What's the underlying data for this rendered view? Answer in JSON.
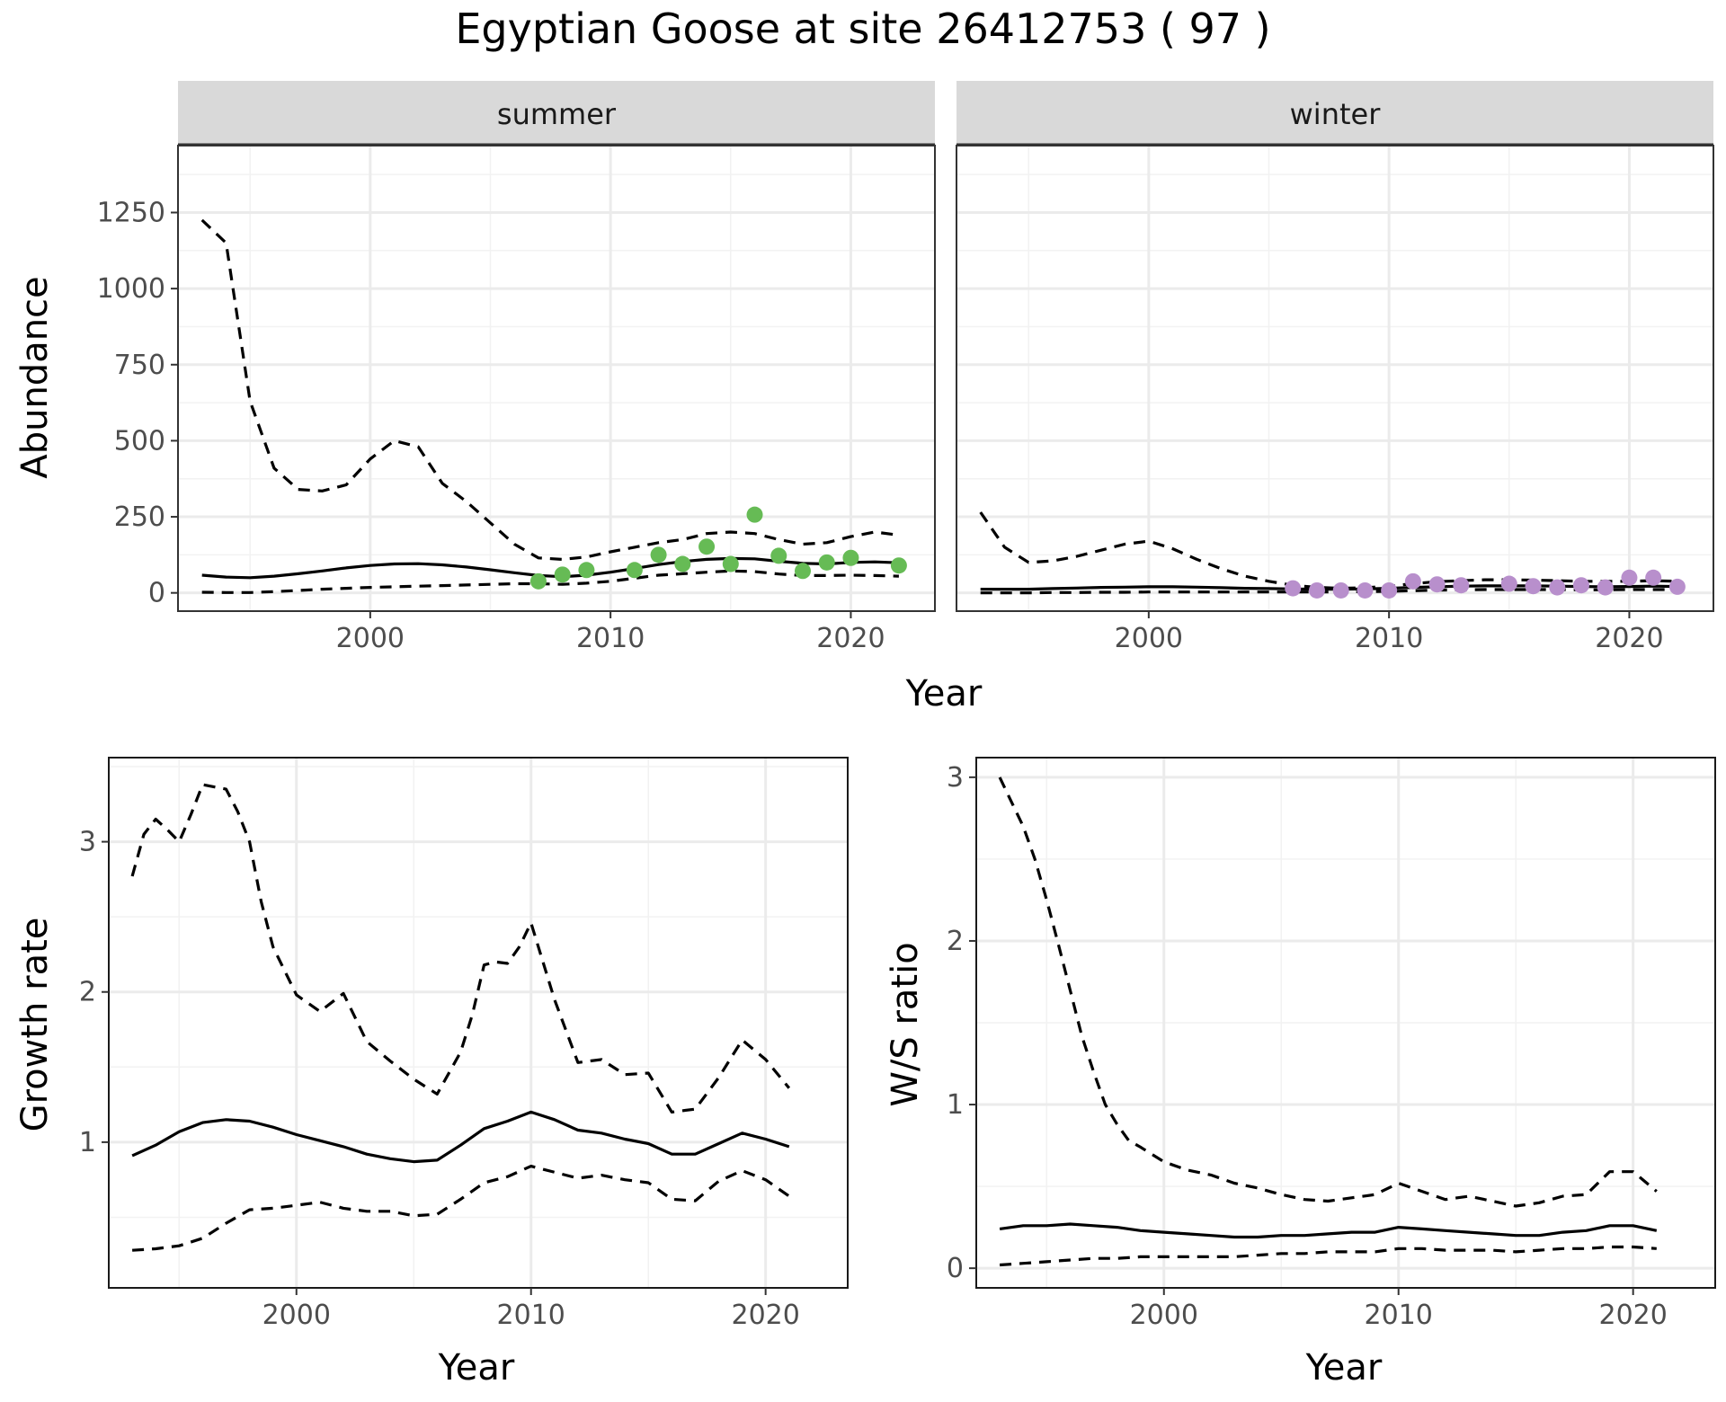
{
  "title": "Egyptian Goose at site 26412753 ( 97 )",
  "colors": {
    "summer_points": "#66bb55",
    "winter_points": "#b88fcc",
    "line": "#000000",
    "grid_major": "#ebebeb",
    "grid_minor": "#f2f2f2",
    "strip_fill": "#d9d9d9",
    "strip_border": "#333333"
  },
  "chart_data": [
    {
      "type": "line",
      "facet": "summer",
      "strip_label": "summer",
      "xlabel": "Year",
      "ylabel": "Abundance",
      "xlim": [
        1992,
        2023.5
      ],
      "ylim": [
        -60,
        1470
      ],
      "x_ticks": [
        2000,
        2010,
        2020
      ],
      "x_tick_labels": [
        "2000",
        "2010",
        "2020"
      ],
      "y_ticks": [
        0,
        250,
        500,
        750,
        1000,
        1250
      ],
      "y_tick_labels": [
        "0",
        "250",
        "500",
        "750",
        "1000",
        "1250"
      ],
      "grid": true,
      "series": [
        {
          "role": "estimate",
          "style": "solid",
          "x": [
            1993,
            1994,
            1995,
            1996,
            1997,
            1998,
            1999,
            2000,
            2001,
            2002,
            2003,
            2004,
            2005,
            2006,
            2007,
            2008,
            2009,
            2010,
            2011,
            2012,
            2013,
            2014,
            2015,
            2016,
            2017,
            2018,
            2019,
            2020,
            2021,
            2022
          ],
          "y": [
            58,
            52,
            50,
            55,
            63,
            72,
            82,
            90,
            95,
            96,
            92,
            85,
            76,
            66,
            57,
            53,
            58,
            68,
            80,
            93,
            103,
            110,
            113,
            112,
            104,
            97,
            95,
            100,
            102,
            99
          ]
        },
        {
          "role": "upper",
          "style": "dashed",
          "x": [
            1993,
            1994,
            1995,
            1996,
            1997,
            1998,
            1999,
            2000,
            2001,
            2002,
            2003,
            2004,
            2005,
            2006,
            2007,
            2008,
            2009,
            2010,
            2011,
            2012,
            2013,
            2014,
            2015,
            2016,
            2017,
            2018,
            2019,
            2020,
            2021,
            2022
          ],
          "y": [
            1225,
            1150,
            630,
            410,
            340,
            335,
            355,
            440,
            500,
            480,
            360,
            300,
            230,
            160,
            115,
            110,
            118,
            135,
            150,
            165,
            175,
            195,
            200,
            195,
            175,
            160,
            165,
            185,
            200,
            190
          ]
        },
        {
          "role": "lower",
          "style": "dashed",
          "x": [
            1993,
            1994,
            1995,
            1996,
            1997,
            1998,
            1999,
            2000,
            2001,
            2002,
            2003,
            2004,
            2005,
            2006,
            2007,
            2008,
            2009,
            2010,
            2011,
            2012,
            2013,
            2014,
            2015,
            2016,
            2017,
            2018,
            2019,
            2020,
            2021,
            2022
          ],
          "y": [
            2,
            1,
            1,
            4,
            8,
            12,
            15,
            18,
            20,
            22,
            24,
            26,
            28,
            30,
            30,
            28,
            32,
            38,
            48,
            58,
            63,
            68,
            72,
            70,
            62,
            57,
            57,
            58,
            57,
            55
          ]
        },
        {
          "role": "observed",
          "style": "points",
          "x": [
            2007,
            2008,
            2009,
            2011,
            2012,
            2013,
            2014,
            2015,
            2016,
            2017,
            2018,
            2019,
            2020,
            2022
          ],
          "y": [
            38,
            60,
            75,
            75,
            125,
            95,
            152,
            95,
            257,
            122,
            72,
            100,
            115,
            90
          ]
        }
      ]
    },
    {
      "type": "line",
      "facet": "winter",
      "strip_label": "winter",
      "xlabel": "Year",
      "ylabel": "Abundance",
      "xlim": [
        1992,
        2023.5
      ],
      "ylim": [
        -60,
        1470
      ],
      "x_ticks": [
        2000,
        2010,
        2020
      ],
      "x_tick_labels": [
        "2000",
        "2010",
        "2020"
      ],
      "grid": true,
      "series": [
        {
          "role": "estimate",
          "style": "solid",
          "x": [
            1993,
            1994,
            1995,
            1996,
            1997,
            1998,
            1999,
            2000,
            2001,
            2002,
            2003,
            2004,
            2005,
            2006,
            2007,
            2008,
            2009,
            2010,
            2011,
            2012,
            2013,
            2014,
            2015,
            2016,
            2017,
            2018,
            2019,
            2020,
            2021,
            2022
          ],
          "y": [
            12,
            12,
            12,
            14,
            16,
            18,
            19,
            20,
            20,
            19,
            17,
            15,
            14,
            13,
            12,
            12,
            13,
            15,
            18,
            20,
            22,
            23,
            23,
            23,
            22,
            21,
            20,
            21,
            22,
            21
          ]
        },
        {
          "role": "upper",
          "style": "dashed",
          "x": [
            1993,
            1994,
            1995,
            1996,
            1997,
            1998,
            1999,
            2000,
            2001,
            2002,
            2003,
            2004,
            2005,
            2006,
            2007,
            2008,
            2009,
            2010,
            2011,
            2012,
            2013,
            2014,
            2015,
            2016,
            2017,
            2018,
            2019,
            2020,
            2021,
            2022
          ],
          "y": [
            265,
            150,
            100,
            105,
            120,
            140,
            160,
            170,
            145,
            110,
            80,
            55,
            38,
            25,
            18,
            15,
            17,
            22,
            30,
            37,
            40,
            43,
            43,
            42,
            40,
            38,
            38,
            38,
            40,
            38
          ]
        },
        {
          "role": "lower",
          "style": "dashed",
          "x": [
            1993,
            1994,
            1995,
            1996,
            1997,
            1998,
            1999,
            2000,
            2001,
            2002,
            2003,
            2004,
            2005,
            2006,
            2007,
            2008,
            2009,
            2010,
            2011,
            2012,
            2013,
            2014,
            2015,
            2016,
            2017,
            2018,
            2019,
            2020,
            2021,
            2022
          ],
          "y": [
            0,
            0,
            0,
            1,
            1,
            2,
            2,
            3,
            3,
            3,
            3,
            3,
            3,
            3,
            3,
            3,
            4,
            5,
            7,
            9,
            10,
            11,
            11,
            11,
            11,
            10,
            10,
            11,
            11,
            11
          ]
        },
        {
          "role": "observed",
          "style": "points",
          "x": [
            2006,
            2007,
            2008,
            2009,
            2010,
            2011,
            2012,
            2013,
            2015,
            2016,
            2017,
            2018,
            2019,
            2020,
            2021,
            2022
          ],
          "y": [
            15,
            8,
            8,
            8,
            8,
            38,
            28,
            25,
            30,
            22,
            18,
            25,
            18,
            50,
            50,
            20
          ]
        }
      ]
    },
    {
      "type": "line",
      "facet": "growth",
      "xlabel": "Year",
      "ylabel": "Growth rate",
      "xlim": [
        1992,
        2023.5
      ],
      "ylim": [
        0.03,
        3.56
      ],
      "x_ticks": [
        2000,
        2010,
        2020
      ],
      "x_tick_labels": [
        "2000",
        "2010",
        "2020"
      ],
      "y_ticks": [
        1,
        2,
        3
      ],
      "y_tick_labels": [
        "1",
        "2",
        "3"
      ],
      "grid": true,
      "series": [
        {
          "role": "estimate",
          "style": "solid",
          "x": [
            1993,
            1994,
            1995,
            1996,
            1997,
            1998,
            1999,
            2000,
            2001,
            2002,
            2003,
            2004,
            2005,
            2006,
            2007,
            2008,
            2009,
            2010,
            2011,
            2012,
            2013,
            2014,
            2015,
            2016,
            2017,
            2018,
            2019,
            2020,
            2021
          ],
          "y": [
            0.91,
            0.98,
            1.07,
            1.13,
            1.15,
            1.14,
            1.1,
            1.05,
            1.01,
            0.97,
            0.92,
            0.89,
            0.87,
            0.88,
            0.98,
            1.09,
            1.14,
            1.2,
            1.15,
            1.08,
            1.06,
            1.02,
            0.99,
            0.92,
            0.92,
            0.99,
            1.06,
            1.02,
            0.97
          ]
        },
        {
          "role": "upper",
          "style": "dashed",
          "x": [
            1993,
            1993.5,
            1994,
            1994.5,
            1995,
            1995.5,
            1996,
            1997,
            1997.5,
            1998,
            1998.5,
            1999,
            2000,
            2001,
            2002,
            2003,
            2004,
            2005,
            2006,
            2007,
            2007.5,
            2008,
            2008.5,
            2009,
            2009.5,
            2010,
            2011,
            2012,
            2013,
            2014,
            2015,
            2016,
            2017,
            2018,
            2019,
            2020,
            2021
          ],
          "y": [
            2.77,
            3.05,
            3.15,
            3.08,
            3.0,
            3.18,
            3.38,
            3.35,
            3.2,
            3.0,
            2.6,
            2.3,
            1.98,
            1.87,
            1.99,
            1.67,
            1.54,
            1.42,
            1.32,
            1.6,
            1.85,
            2.18,
            2.2,
            2.19,
            2.3,
            2.46,
            1.95,
            1.53,
            1.55,
            1.45,
            1.46,
            1.2,
            1.22,
            1.43,
            1.68,
            1.55,
            1.36
          ]
        },
        {
          "role": "lower",
          "style": "dashed",
          "x": [
            1993,
            1994,
            1995,
            1996,
            1997,
            1998,
            1999,
            2000,
            2001,
            2002,
            2003,
            2004,
            2005,
            2006,
            2007,
            2008,
            2009,
            2010,
            2011,
            2012,
            2013,
            2014,
            2015,
            2016,
            2017,
            2018,
            2019,
            2020,
            2021
          ],
          "y": [
            0.28,
            0.29,
            0.31,
            0.36,
            0.46,
            0.55,
            0.56,
            0.58,
            0.6,
            0.56,
            0.54,
            0.54,
            0.51,
            0.52,
            0.62,
            0.73,
            0.77,
            0.84,
            0.8,
            0.76,
            0.78,
            0.75,
            0.73,
            0.62,
            0.61,
            0.74,
            0.81,
            0.75,
            0.64
          ]
        }
      ]
    },
    {
      "type": "line",
      "facet": "ratio",
      "xlabel": "Year",
      "ylabel": "W/S ratio",
      "xlim": [
        1992,
        2023.5
      ],
      "ylim": [
        -0.12,
        3.12
      ],
      "x_ticks": [
        2000,
        2010,
        2020
      ],
      "x_tick_labels": [
        "2000",
        "2010",
        "2020"
      ],
      "y_ticks": [
        0,
        1,
        2,
        3
      ],
      "y_tick_labels": [
        "0",
        "1",
        "2",
        "3"
      ],
      "grid": true,
      "series": [
        {
          "role": "estimate",
          "style": "solid",
          "x": [
            1993,
            1994,
            1995,
            1996,
            1997,
            1998,
            1999,
            2000,
            2001,
            2002,
            2003,
            2004,
            2005,
            2006,
            2007,
            2008,
            2009,
            2010,
            2011,
            2012,
            2013,
            2014,
            2015,
            2016,
            2017,
            2018,
            2019,
            2020,
            2021
          ],
          "y": [
            0.24,
            0.26,
            0.26,
            0.27,
            0.26,
            0.25,
            0.23,
            0.22,
            0.21,
            0.2,
            0.19,
            0.19,
            0.2,
            0.2,
            0.21,
            0.22,
            0.22,
            0.25,
            0.24,
            0.23,
            0.22,
            0.21,
            0.2,
            0.2,
            0.22,
            0.23,
            0.26,
            0.26,
            0.23
          ]
        },
        {
          "role": "upper",
          "style": "dashed",
          "x": [
            1993,
            1993.5,
            1994,
            1994.5,
            1995,
            1995.5,
            1996,
            1996.5,
            1997,
            1997.5,
            1998,
            1998.5,
            1999,
            2000,
            2001,
            2002,
            2003,
            2004,
            2005,
            2006,
            2007,
            2008,
            2009,
            2010,
            2011,
            2012,
            2013,
            2014,
            2015,
            2016,
            2017,
            2018,
            2019,
            2020,
            2021
          ],
          "y": [
            3.0,
            2.85,
            2.7,
            2.5,
            2.25,
            1.98,
            1.7,
            1.42,
            1.2,
            1.0,
            0.88,
            0.78,
            0.74,
            0.65,
            0.6,
            0.57,
            0.52,
            0.49,
            0.45,
            0.42,
            0.41,
            0.43,
            0.45,
            0.52,
            0.47,
            0.42,
            0.44,
            0.41,
            0.38,
            0.4,
            0.44,
            0.45,
            0.59,
            0.59,
            0.47
          ]
        },
        {
          "role": "lower",
          "style": "dashed",
          "x": [
            1993,
            1994,
            1995,
            1996,
            1997,
            1998,
            1999,
            2000,
            2001,
            2002,
            2003,
            2004,
            2005,
            2006,
            2007,
            2008,
            2009,
            2010,
            2011,
            2012,
            2013,
            2014,
            2015,
            2016,
            2017,
            2018,
            2019,
            2020,
            2021
          ],
          "y": [
            0.02,
            0.03,
            0.04,
            0.05,
            0.06,
            0.06,
            0.07,
            0.07,
            0.07,
            0.07,
            0.07,
            0.08,
            0.09,
            0.09,
            0.1,
            0.1,
            0.1,
            0.12,
            0.12,
            0.11,
            0.11,
            0.11,
            0.1,
            0.11,
            0.12,
            0.12,
            0.13,
            0.13,
            0.12
          ]
        }
      ]
    }
  ]
}
